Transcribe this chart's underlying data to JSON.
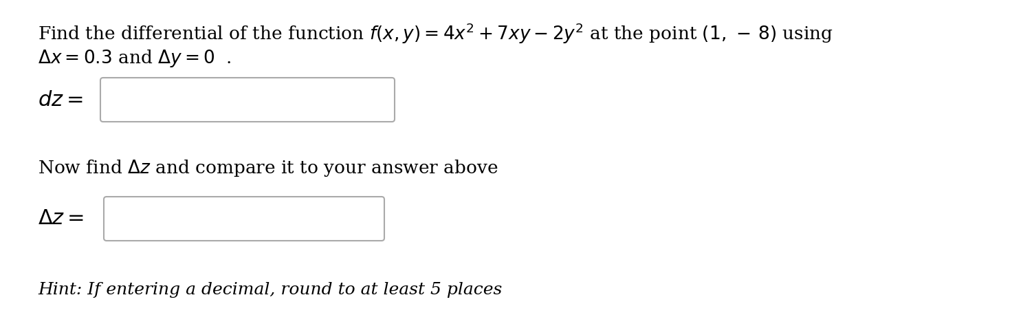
{
  "background_color": "#ffffff",
  "text_color": "#000000",
  "box_edge_color": "#aaaaaa",
  "main_fontsize": 19,
  "label_fontsize": 22,
  "hint_fontsize": 18,
  "line1": "Find the differential of the function $f(x, y) = 4x^2 + 7xy - 2y^2$ at the point $(1,\\, -\\, 8)$ using",
  "line2": "$\\Delta x = 0.3$ and $\\Delta y = 0$  .",
  "dz_label": "$dz =$",
  "deltaz_label": "$\\Delta z =$",
  "middle_text": "Now find $\\Delta z$ and compare it to your answer above",
  "hint_text": "Hint: If entering a decimal, round to at least 5 places",
  "fig_width": 14.72,
  "fig_height": 4.58,
  "dpi": 100
}
